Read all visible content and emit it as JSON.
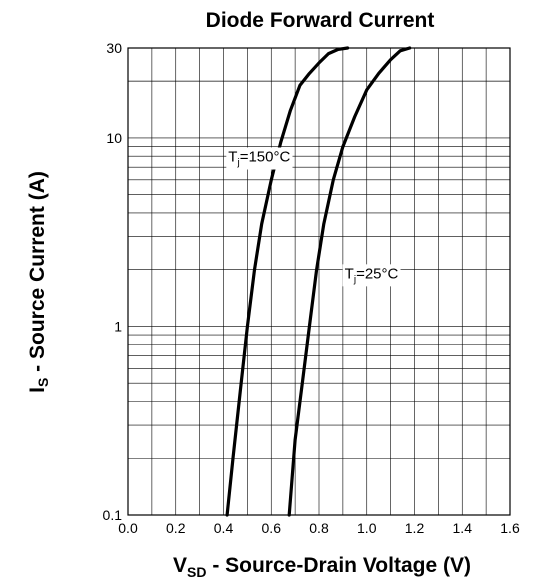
{
  "chart_data": {
    "type": "line",
    "title": "Diode Forward Current",
    "xlabel": {
      "main": "V",
      "sub": "SD",
      "rest": " - Source-Drain Voltage (V)"
    },
    "ylabel": {
      "main": "I",
      "sub": "S",
      "rest": " - Source Current (A)"
    },
    "xlim": [
      0.0,
      1.6
    ],
    "ylim": [
      0.1,
      30
    ],
    "yscale": "log",
    "grid": true,
    "xticks": [
      "0.0",
      "0.2",
      "0.4",
      "0.6",
      "0.8",
      "1.0",
      "1.2",
      "1.4",
      "1.6"
    ],
    "yticks": [
      "0.1",
      "1",
      "10",
      "30"
    ],
    "series": [
      {
        "name": "Tj=150°C",
        "x": [
          0.415,
          0.44,
          0.47,
          0.5,
          0.53,
          0.56,
          0.6,
          0.64,
          0.68,
          0.72,
          0.76,
          0.8,
          0.84,
          0.88,
          0.92
        ],
        "y": [
          0.1,
          0.2,
          0.45,
          1.0,
          2.0,
          3.5,
          6.0,
          9.5,
          14.0,
          19.0,
          22.0,
          25.0,
          28.0,
          29.5,
          30.0
        ]
      },
      {
        "name": "Tj=25°C",
        "x": [
          0.675,
          0.7,
          0.73,
          0.76,
          0.79,
          0.82,
          0.86,
          0.9,
          0.95,
          1.0,
          1.05,
          1.1,
          1.14,
          1.18
        ],
        "y": [
          0.1,
          0.25,
          0.5,
          1.0,
          2.0,
          3.5,
          6.0,
          9.0,
          13.0,
          18.0,
          22.0,
          26.0,
          29.0,
          30.0
        ]
      }
    ],
    "annotations": [
      {
        "main": "T",
        "sub": "j",
        "rest": "=150°C",
        "x": 0.55,
        "y": 7.5
      },
      {
        "main": "T",
        "sub": "j",
        "rest": "=25°C",
        "x": 1.02,
        "y": 1.8
      }
    ]
  }
}
